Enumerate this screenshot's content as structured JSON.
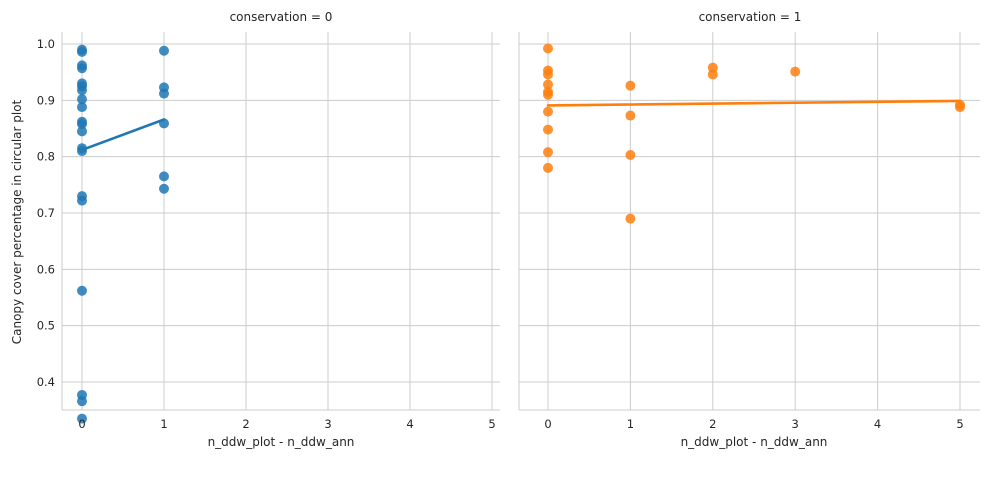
{
  "chart_data": {
    "type": "scatter",
    "ylabel": "Canopy cover percentage in circular plot",
    "ylim": [
      0.3,
      1.03
    ],
    "yticks": [
      0.4,
      0.5,
      0.6,
      0.7,
      0.8,
      0.9,
      1.0
    ],
    "ytick_labels": [
      "0.4",
      "0.5",
      "0.6",
      "0.7",
      "0.8",
      "0.9",
      "1.0"
    ],
    "xlim": [
      -0.25,
      5.25
    ],
    "xticks": [
      0,
      1,
      2,
      3,
      4,
      5
    ],
    "xtick_labels": [
      "0",
      "1",
      "2",
      "3",
      "4",
      "5"
    ],
    "grid": true,
    "panels": [
      {
        "title": "conservation = 0",
        "xlabel": "n_ddw_plot - n_ddw_ann",
        "color": "#1f77b4",
        "points": [
          {
            "x": 0,
            "y": 0.99
          },
          {
            "x": 0,
            "y": 0.986
          },
          {
            "x": 0,
            "y": 0.962
          },
          {
            "x": 0,
            "y": 0.957
          },
          {
            "x": 0,
            "y": 0.93
          },
          {
            "x": 0,
            "y": 0.925
          },
          {
            "x": 0,
            "y": 0.918
          },
          {
            "x": 0,
            "y": 0.902
          },
          {
            "x": 0,
            "y": 0.888
          },
          {
            "x": 0,
            "y": 0.862
          },
          {
            "x": 0,
            "y": 0.858
          },
          {
            "x": 0,
            "y": 0.845
          },
          {
            "x": 0,
            "y": 0.815
          },
          {
            "x": 0,
            "y": 0.81
          },
          {
            "x": 0,
            "y": 0.73
          },
          {
            "x": 0,
            "y": 0.722
          },
          {
            "x": 0,
            "y": 0.562
          },
          {
            "x": 0,
            "y": 0.377
          },
          {
            "x": 0,
            "y": 0.366
          },
          {
            "x": 0,
            "y": 0.335
          },
          {
            "x": 1,
            "y": 0.988
          },
          {
            "x": 1,
            "y": 0.923
          },
          {
            "x": 1,
            "y": 0.912
          },
          {
            "x": 1,
            "y": 0.859
          },
          {
            "x": 1,
            "y": 0.765
          },
          {
            "x": 1,
            "y": 0.743
          }
        ],
        "fit_line": [
          {
            "x": 0,
            "y": 0.812
          },
          {
            "x": 1,
            "y": 0.866
          }
        ]
      },
      {
        "title": "conservation = 1",
        "xlabel": "n_ddw_plot - n_ddw_ann",
        "color": "#ff7f0e",
        "points": [
          {
            "x": 0,
            "y": 0.992
          },
          {
            "x": 0,
            "y": 0.953
          },
          {
            "x": 0,
            "y": 0.946
          },
          {
            "x": 0,
            "y": 0.928
          },
          {
            "x": 0,
            "y": 0.915
          },
          {
            "x": 0,
            "y": 0.91
          },
          {
            "x": 0,
            "y": 0.88
          },
          {
            "x": 0,
            "y": 0.848
          },
          {
            "x": 0,
            "y": 0.808
          },
          {
            "x": 0,
            "y": 0.78
          },
          {
            "x": 1,
            "y": 0.926
          },
          {
            "x": 1,
            "y": 0.873
          },
          {
            "x": 1,
            "y": 0.803
          },
          {
            "x": 1,
            "y": 0.69
          },
          {
            "x": 2,
            "y": 0.958
          },
          {
            "x": 2,
            "y": 0.946
          },
          {
            "x": 3,
            "y": 0.951
          },
          {
            "x": 5,
            "y": 0.892
          },
          {
            "x": 5,
            "y": 0.888
          }
        ],
        "fit_line": [
          {
            "x": 0,
            "y": 0.891
          },
          {
            "x": 5,
            "y": 0.899
          }
        ]
      }
    ]
  }
}
